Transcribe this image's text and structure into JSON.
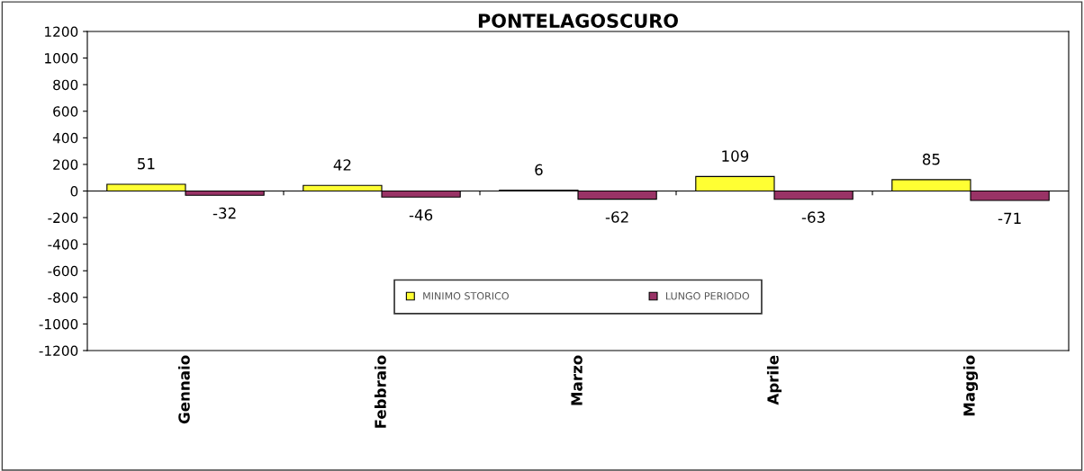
{
  "chart_data": {
    "type": "bar",
    "title": "PONTELAGOSCURO",
    "categories": [
      "Gennaio",
      "Febbraio",
      "Marzo",
      "Aprile",
      "Maggio"
    ],
    "series": [
      {
        "name": "MINIMO STORICO",
        "color": "#ffff33",
        "values": [
          51,
          42,
          6,
          109,
          85
        ]
      },
      {
        "name": "LUNGO PERIODO",
        "color": "#993366",
        "values": [
          -32,
          -46,
          -62,
          -63,
          -71
        ]
      }
    ],
    "ylim": [
      -1200,
      1200
    ],
    "yticks": [
      -1200,
      -1000,
      -800,
      -600,
      -400,
      -200,
      0,
      200,
      400,
      600,
      800,
      1000,
      1200
    ],
    "ref_lines": [
      {
        "axis": "y",
        "value": 0,
        "color": "#000000"
      }
    ],
    "data_labels": true,
    "grid": false,
    "legend": "bottom"
  }
}
